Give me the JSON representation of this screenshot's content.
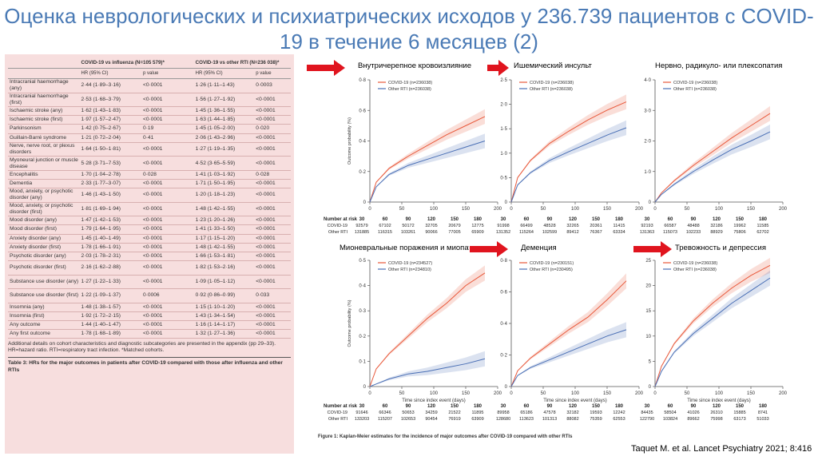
{
  "slide": {
    "title": "Оценка неврологических и психиатрических исходов у 236.739 пациентов с COVID-19 в течение 6 месяцев (2)",
    "credit": "Taquet M. et al. Lancet Psychiatry 2021; 8:416"
  },
  "table": {
    "group_headers": [
      "COVID-19 vs influenza (N=105 579)*",
      "COVID-19 vs other RTI (N=236 038)*"
    ],
    "sub_headers": [
      "HR (95% CI)",
      "p value",
      "HR (95% CI)",
      "p value"
    ],
    "rows": [
      [
        "Intracranial haemorrhage (any)",
        "2·44 (1·89–3·16)",
        "<0·0001",
        "1·26 (1·11–1·43)",
        "0·0003"
      ],
      [
        "Intracranial haemorrhage (first)",
        "2·53 (1·68–3·79)",
        "<0·0001",
        "1·56 (1·27–1·92)",
        "<0·0001"
      ],
      [
        "Ischaemic stroke (any)",
        "1·62 (1·43–1·83)",
        "<0·0001",
        "1·45 (1·36–1·55)",
        "<0·0001"
      ],
      [
        "Ischaemic stroke (first)",
        "1·97 (1·57–2·47)",
        "<0·0001",
        "1·63 (1·44–1·85)",
        "<0·0001"
      ],
      [
        "Parkinsonism",
        "1·42 (0·75–2·67)",
        "0·19",
        "1·45 (1·05–2·00)",
        "0·020"
      ],
      [
        "Guillain-Barré syndrome",
        "1·21 (0·72–2·04)",
        "0·41",
        "2·06 (1·43–2·96)",
        "<0·0001"
      ],
      [
        "Nerve, nerve root, or plexus disorders",
        "1·64 (1·50–1·81)",
        "<0·0001",
        "1·27 (1·19–1·35)",
        "<0·0001"
      ],
      [
        "Myoneural junction or muscle disease",
        "5·28 (3·71–7·53)",
        "<0·0001",
        "4·52 (3·65–5·59)",
        "<0·0001"
      ],
      [
        "Encephalitis",
        "1·70 (1·04–2·78)",
        "0·028",
        "1·41 (1·03–1·92)",
        "0·028"
      ],
      [
        "Dementia",
        "2·33 (1·77–3·07)",
        "<0·0001",
        "1·71 (1·50–1·95)",
        "<0·0001"
      ],
      [
        "Mood, anxiety, or psychotic disorder (any)",
        "1·46 (1·43–1·50)",
        "<0·0001",
        "1·20 (1·18–1·23)",
        "<0·0001"
      ],
      [
        "Mood, anxiety, or psychotic disorder (first)",
        "1·81 (1·69–1·94)",
        "<0·0001",
        "1·48 (1·42–1·55)",
        "<0·0001"
      ],
      [
        "Mood disorder (any)",
        "1·47 (1·42–1·53)",
        "<0·0001",
        "1·23 (1·20–1·26)",
        "<0·0001"
      ],
      [
        "Mood disorder (first)",
        "1·79 (1·64–1·95)",
        "<0·0001",
        "1·41 (1·33–1·50)",
        "<0·0001"
      ],
      [
        "Anxiety disorder (any)",
        "1·45 (1·40–1·49)",
        "<0·0001",
        "1·17 (1·15–1·20)",
        "<0·0001"
      ],
      [
        "Anxiety disorder (first)",
        "1·78 (1·66–1·91)",
        "<0·0001",
        "1·48 (1·42–1·55)",
        "<0·0001"
      ],
      [
        "Psychotic disorder (any)",
        "2·03 (1·78–2·31)",
        "<0·0001",
        "1·66 (1·53–1·81)",
        "<0·0001"
      ],
      [
        "Psychotic disorder (first)",
        "2·16 (1·62–2·88)",
        "<0·0001",
        "1·82 (1·53–2·16)",
        "<0·0001"
      ],
      [
        "Substance use disorder (any)",
        "1·27 (1·22–1·33)",
        "<0·0001",
        "1·09 (1·05–1·12)",
        "<0·0001"
      ],
      [
        "Substance use disorder (first)",
        "1·22 (1·09–1·37)",
        "0·0006",
        "0·92 (0·86–0·99)",
        "0·033"
      ],
      [
        "Insomnia (any)",
        "1·48 (1·38–1·57)",
        "<0·0001",
        "1·15 (1·10–1·20)",
        "<0·0001"
      ],
      [
        "Insomnia (first)",
        "1·92 (1·72–2·15)",
        "<0·0001",
        "1·43 (1·34–1·54)",
        "<0·0001"
      ],
      [
        "Any outcome",
        "1·44 (1·40–1·47)",
        "<0·0001",
        "1·16 (1·14–1·17)",
        "<0·0001"
      ],
      [
        "Any first outcome",
        "1·78 (1·68–1·89)",
        "<0·0001",
        "1·32 (1·27–1·36)",
        "<0·0001"
      ]
    ],
    "footnote": "Additional details on cohort characteristics and diagnostic subcategories are presented in the appendix (pp 29–33). HR=hazard ratio. RTI=respiratory tract infection. *Matched cohorts.",
    "caption": "Table 3: HRs for the major outcomes in patients after COVID-19 compared with those after influenza and other RTIs"
  },
  "figure_caption": "Figure 1: Kaplan-Meier estimates for the incidence of major outcomes after COVID-19 compared with other RTIs",
  "colors": {
    "covid": "#e8583a",
    "rti": "#4a6fb5",
    "arrow": "#e0141e",
    "title": "#4a7ab5",
    "table_bg": "#f7dede"
  },
  "chart_data": [
    {
      "type": "line",
      "title": "Внутричерепное кровоизлияние",
      "ylabel": "Outcome probability (%)",
      "xlabel": "",
      "ylim": [
        0,
        0.8
      ],
      "yticks": [
        "0",
        "0·2",
        "0·4",
        "0·6",
        "0·8"
      ],
      "xlim": [
        0,
        200
      ],
      "xticks": [
        0,
        50,
        100,
        150,
        200
      ],
      "series": [
        {
          "name": "COVID-19 (n=236038)",
          "x": [
            0,
            10,
            30,
            60,
            90,
            120,
            150,
            180
          ],
          "values": [
            0,
            0.13,
            0.22,
            0.3,
            0.37,
            0.44,
            0.5,
            0.56
          ]
        },
        {
          "name": "Other RTI (n=236038)",
          "x": [
            0,
            10,
            30,
            60,
            90,
            120,
            150,
            180
          ],
          "values": [
            0,
            0.1,
            0.18,
            0.24,
            0.28,
            0.32,
            0.36,
            0.4
          ]
        }
      ],
      "risk": {
        "label": "Number at risk",
        "days": [
          "30",
          "60",
          "90",
          "120",
          "150",
          "180"
        ],
        "covid_label": "COVID-19",
        "rti_label": "Other RTI",
        "covid": [
          "92579",
          "67102",
          "50172",
          "32705",
          "20679",
          "12775"
        ],
        "rti": [
          "131885",
          "116315",
          "103261",
          "90066",
          "77005",
          "65909"
        ]
      }
    },
    {
      "type": "line",
      "title": "Ишемический инсульт",
      "ylabel": "",
      "xlabel": "",
      "ylim": [
        0,
        2.5
      ],
      "yticks": [
        "0",
        "0·5",
        "1·0",
        "1·5",
        "2·0",
        "2·5"
      ],
      "xlim": [
        0,
        200
      ],
      "xticks": [
        0,
        50,
        100,
        150,
        200
      ],
      "series": [
        {
          "name": "COVID-19 (n=236038)",
          "x": [
            0,
            10,
            30,
            60,
            90,
            120,
            150,
            180
          ],
          "values": [
            0,
            0.5,
            0.85,
            1.2,
            1.45,
            1.68,
            1.88,
            2.05
          ]
        },
        {
          "name": "Other RTI (n=236038)",
          "x": [
            0,
            10,
            30,
            60,
            90,
            120,
            150,
            180
          ],
          "values": [
            0,
            0.35,
            0.6,
            0.85,
            1.03,
            1.2,
            1.37,
            1.52
          ]
        }
      ],
      "risk": {
        "label": "",
        "days": [
          "30",
          "60",
          "90",
          "120",
          "150",
          "180"
        ],
        "covid_label": "COVID-19",
        "rti_label": "Other RTI",
        "covid": [
          "91998",
          "66499",
          "48528",
          "32265",
          "20361",
          "11415"
        ],
        "rti": [
          "131352",
          "115264",
          "102599",
          "89412",
          "76367",
          "63334"
        ]
      }
    },
    {
      "type": "line",
      "title": "Нервно, радикуло- или плексопатия",
      "ylabel": "",
      "xlabel": "",
      "ylim": [
        0,
        4
      ],
      "yticks": [
        "0",
        "1·0",
        "2·0",
        "3·0",
        "4·0"
      ],
      "xlim": [
        0,
        200
      ],
      "xticks": [
        0,
        50,
        100,
        150,
        200
      ],
      "series": [
        {
          "name": "COVID-19 (n=236038)",
          "x": [
            0,
            10,
            30,
            60,
            90,
            120,
            150,
            180
          ],
          "values": [
            0,
            0.3,
            0.7,
            1.2,
            1.65,
            2.1,
            2.5,
            2.9
          ]
        },
        {
          "name": "Other RTI (n=236038)",
          "x": [
            0,
            10,
            30,
            60,
            90,
            120,
            150,
            180
          ],
          "values": [
            0,
            0.25,
            0.58,
            1.0,
            1.37,
            1.72,
            2.0,
            2.3
          ]
        }
      ],
      "risk": {
        "label": "",
        "days": [
          "30",
          "60",
          "90",
          "120",
          "150",
          "180"
        ],
        "covid_label": "COVID-19",
        "rti_label": "Other RTI",
        "covid": [
          "92193",
          "66587",
          "48488",
          "32186",
          "19962",
          "11585"
        ],
        "rti": [
          "131363",
          "115073",
          "102233",
          "88929",
          "75806",
          "62702"
        ]
      }
    },
    {
      "type": "line",
      "title": "Мионевральные поражения и миопатии",
      "ylabel": "Outcome probability (%)",
      "xlabel": "Time since index event (days)",
      "ylim": [
        0,
        0.5
      ],
      "yticks": [
        "0",
        "0·1",
        "0·2",
        "0·3",
        "0·4",
        "0·5"
      ],
      "xlim": [
        0,
        200
      ],
      "xticks": [
        0,
        50,
        100,
        150,
        200
      ],
      "series": [
        {
          "name": "COVID-19 (n=234527)",
          "x": [
            0,
            10,
            30,
            60,
            90,
            120,
            150,
            180
          ],
          "values": [
            0,
            0.07,
            0.13,
            0.2,
            0.27,
            0.33,
            0.4,
            0.45
          ]
        },
        {
          "name": "Other RTI (n=234810)",
          "x": [
            0,
            10,
            30,
            60,
            90,
            120,
            150,
            180
          ],
          "values": [
            0,
            0.01,
            0.03,
            0.05,
            0.06,
            0.075,
            0.09,
            0.11
          ]
        }
      ],
      "risk": {
        "label": "Number at risk",
        "days": [
          "30",
          "60",
          "90",
          "120",
          "150",
          "180"
        ],
        "covid_label": "COVID-19",
        "rti_label": "Other RTI",
        "covid": [
          "91646",
          "66346",
          "50653",
          "34259",
          "21522",
          "11895"
        ],
        "rti": [
          "133203",
          "115207",
          "102653",
          "90454",
          "76919",
          "63909"
        ]
      }
    },
    {
      "type": "line",
      "title": "Деменция",
      "ylabel": "",
      "xlabel": "Time since index event (days)",
      "ylim": [
        0,
        0.8
      ],
      "yticks": [
        "0",
        "0·2",
        "0·4",
        "0·6",
        "0·8"
      ],
      "xlim": [
        0,
        200
      ],
      "xticks": [
        0,
        50,
        100,
        150,
        200
      ],
      "series": [
        {
          "name": "COVID-19 (n=230151)",
          "x": [
            0,
            10,
            30,
            60,
            90,
            120,
            150,
            180
          ],
          "values": [
            0,
            0.1,
            0.18,
            0.27,
            0.36,
            0.44,
            0.55,
            0.67
          ]
        },
        {
          "name": "Other RTI (n=230495)",
          "x": [
            0,
            10,
            30,
            60,
            90,
            120,
            150,
            180
          ],
          "values": [
            0,
            0.07,
            0.12,
            0.17,
            0.22,
            0.27,
            0.32,
            0.36
          ]
        }
      ],
      "risk": {
        "label": "",
        "days": [
          "30",
          "60",
          "90",
          "120",
          "150",
          "180"
        ],
        "covid_label": "COVID-19",
        "rti_label": "Other RTI",
        "covid": [
          "89958",
          "65186",
          "47578",
          "32182",
          "19593",
          "12242"
        ],
        "rti": [
          "128680",
          "113623",
          "101313",
          "88082",
          "75359",
          "62553"
        ]
      }
    },
    {
      "type": "line",
      "title": "Тревожность и депрессия",
      "ylabel": "",
      "xlabel": "Time since index event (days)",
      "ylim": [
        0,
        25
      ],
      "yticks": [
        "0",
        "5",
        "10",
        "15",
        "20",
        "25"
      ],
      "xlim": [
        0,
        200
      ],
      "xticks": [
        0,
        50,
        100,
        150,
        200
      ],
      "series": [
        {
          "name": "COVID-19 (n=236038)",
          "x": [
            0,
            10,
            30,
            60,
            90,
            120,
            150,
            180
          ],
          "values": [
            0,
            4,
            8.5,
            13,
            16.5,
            19.5,
            22,
            24
          ]
        },
        {
          "name": "Other RTI (n=236038)",
          "x": [
            0,
            10,
            30,
            60,
            90,
            120,
            150,
            180
          ],
          "values": [
            0,
            3,
            6.8,
            10.5,
            13.5,
            16.5,
            19,
            21.5
          ]
        }
      ],
      "risk": {
        "label": "",
        "days": [
          "30",
          "60",
          "90",
          "120",
          "150",
          "180"
        ],
        "covid_label": "COVID-19",
        "rti_label": "Other RTI",
        "covid": [
          "84435",
          "58504",
          "41026",
          "26310",
          "15885",
          "8741"
        ],
        "rti": [
          "122790",
          "103824",
          "89662",
          "75998",
          "63173",
          "51033"
        ]
      }
    }
  ]
}
